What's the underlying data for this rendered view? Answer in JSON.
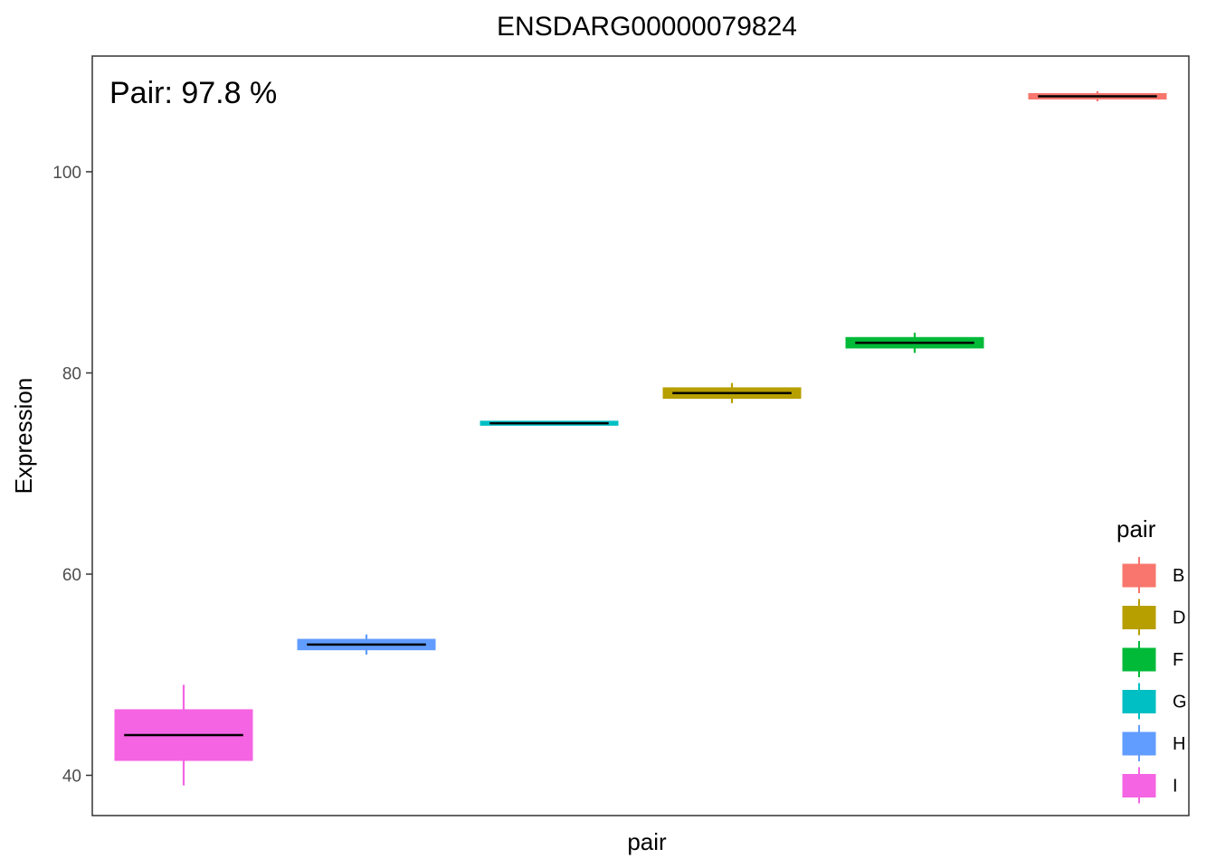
{
  "chart_data": {
    "type": "boxplot",
    "title": "ENSDARG00000079824",
    "xlabel": "pair",
    "ylabel": "Expression",
    "annotation": "Pair: 97.8 %",
    "ylim": [
      36,
      111.5
    ],
    "yticks": [
      40,
      60,
      80,
      100
    ],
    "grid": false,
    "legend": {
      "title": "pair",
      "placement": "right"
    },
    "series": [
      {
        "name": "I",
        "color": "#F564E3",
        "min": 39.0,
        "q1": 41.5,
        "median": 44.0,
        "q3": 46.5,
        "max": 49.0
      },
      {
        "name": "H",
        "color": "#619CFF",
        "min": 52.0,
        "q1": 52.5,
        "median": 53.0,
        "q3": 53.5,
        "max": 54.0
      },
      {
        "name": "G",
        "color": "#00BFC4",
        "min": 74.9,
        "q1": 74.95,
        "median": 75.0,
        "q3": 75.05,
        "max": 75.1
      },
      {
        "name": "D",
        "color": "#B79F00",
        "min": 77.0,
        "q1": 77.5,
        "median": 78.0,
        "q3": 78.5,
        "max": 79.0
      },
      {
        "name": "F",
        "color": "#00BA38",
        "min": 82.0,
        "q1": 82.5,
        "median": 83.0,
        "q3": 83.5,
        "max": 84.0
      },
      {
        "name": "B",
        "color": "#F8766D",
        "min": 107.0,
        "q1": 107.25,
        "median": 107.5,
        "q3": 107.75,
        "max": 108.0
      }
    ],
    "legend_order": [
      "B",
      "D",
      "F",
      "G",
      "H",
      "I"
    ]
  }
}
